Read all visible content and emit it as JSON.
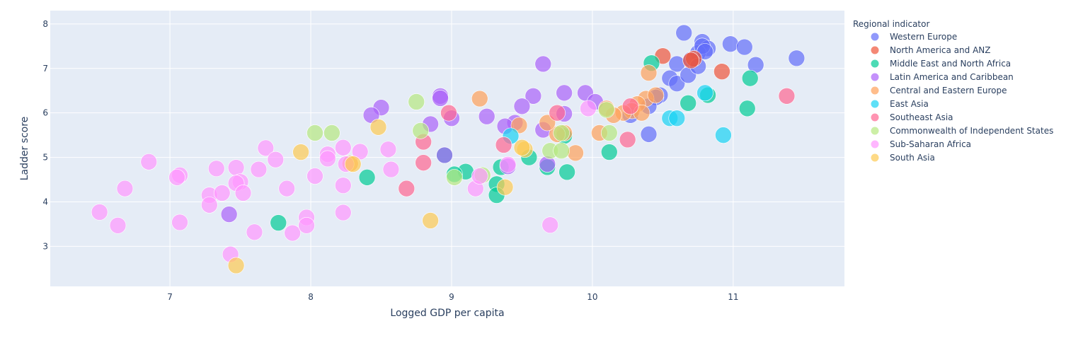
{
  "chart_data": {
    "type": "scatter",
    "xlabel": "Logged GDP per capita",
    "ylabel": "Ladder score",
    "xlim": [
      6.15,
      11.79
    ],
    "ylim": [
      2.1,
      8.3
    ],
    "xticks": [
      7,
      8,
      9,
      10,
      11
    ],
    "yticks": [
      3,
      4,
      5,
      6,
      7,
      8
    ],
    "grid": true,
    "legend": {
      "title": "Regional indicator",
      "position": "right"
    },
    "series": [
      {
        "name": "Western Europe",
        "color": "#636efa",
        "points": [
          [
            10.65,
            7.8
          ],
          [
            10.6,
            7.1
          ],
          [
            10.78,
            7.6
          ],
          [
            10.82,
            7.45
          ],
          [
            10.75,
            7.35
          ],
          [
            10.78,
            7.5
          ],
          [
            10.98,
            7.55
          ],
          [
            11.08,
            7.48
          ],
          [
            11.16,
            7.08
          ],
          [
            11.45,
            7.23
          ],
          [
            10.7,
            7.2
          ],
          [
            10.55,
            6.78
          ],
          [
            10.6,
            6.66
          ],
          [
            10.48,
            6.4
          ],
          [
            10.45,
            6.35
          ],
          [
            10.4,
            6.15
          ],
          [
            10.27,
            5.95
          ],
          [
            10.4,
            5.52
          ],
          [
            10.68,
            6.85
          ],
          [
            10.75,
            7.05
          ],
          [
            10.8,
            7.38
          ]
        ]
      },
      {
        "name": "North America and ANZ",
        "color": "#ef553b",
        "points": [
          [
            10.5,
            7.28
          ],
          [
            10.72,
            7.22
          ],
          [
            10.92,
            6.93
          ],
          [
            10.7,
            7.18
          ]
        ]
      },
      {
        "name": "Middle East and North Africa",
        "color": "#00cc96",
        "points": [
          [
            10.42,
            7.12
          ],
          [
            11.12,
            6.78
          ],
          [
            10.82,
            6.4
          ],
          [
            10.68,
            6.22
          ],
          [
            11.1,
            6.1
          ],
          [
            10.12,
            5.12
          ],
          [
            9.8,
            5.48
          ],
          [
            9.55,
            5.0
          ],
          [
            9.35,
            4.78
          ],
          [
            9.32,
            4.4
          ],
          [
            9.32,
            4.15
          ],
          [
            9.1,
            4.68
          ],
          [
            9.02,
            4.62
          ],
          [
            8.4,
            4.55
          ],
          [
            7.77,
            3.53
          ],
          [
            8.95,
            5.05
          ],
          [
            9.82,
            4.67
          ],
          [
            9.68,
            4.78
          ]
        ]
      },
      {
        "name": "Latin America and Caribbean",
        "color": "#ab63fa",
        "points": [
          [
            9.65,
            7.1
          ],
          [
            9.8,
            6.45
          ],
          [
            9.95,
            6.45
          ],
          [
            9.58,
            6.38
          ],
          [
            9.5,
            6.15
          ],
          [
            10.02,
            6.25
          ],
          [
            8.92,
            6.38
          ],
          [
            8.92,
            6.33
          ],
          [
            8.5,
            6.12
          ],
          [
            8.43,
            5.95
          ],
          [
            9.25,
            5.92
          ],
          [
            9.0,
            5.88
          ],
          [
            8.85,
            5.75
          ],
          [
            9.8,
            5.98
          ],
          [
            9.65,
            5.62
          ],
          [
            9.45,
            5.78
          ],
          [
            9.38,
            5.7
          ],
          [
            8.95,
            5.05
          ],
          [
            9.68,
            4.85
          ],
          [
            9.4,
            4.8
          ],
          [
            7.42,
            3.72
          ]
        ]
      },
      {
        "name": "Central and Eastern Europe",
        "color": "#ffa15a",
        "points": [
          [
            10.4,
            6.9
          ],
          [
            10.38,
            6.32
          ],
          [
            10.45,
            6.4
          ],
          [
            10.32,
            6.2
          ],
          [
            10.28,
            6.05
          ],
          [
            10.35,
            6.0
          ],
          [
            10.22,
            6.0
          ],
          [
            10.15,
            5.95
          ],
          [
            10.05,
            5.55
          ],
          [
            9.8,
            5.55
          ],
          [
            9.75,
            5.52
          ],
          [
            9.88,
            5.1
          ],
          [
            9.68,
            5.78
          ],
          [
            9.48,
            5.72
          ],
          [
            9.2,
            6.32
          ],
          [
            8.28,
            4.86
          ],
          [
            10.1,
            6.1
          ]
        ]
      },
      {
        "name": "East Asia",
        "color": "#19d3f3",
        "points": [
          [
            10.8,
            6.45
          ],
          [
            10.55,
            5.88
          ],
          [
            10.6,
            5.88
          ],
          [
            10.93,
            5.5
          ],
          [
            9.42,
            5.48
          ]
        ]
      },
      {
        "name": "Southeast Asia",
        "color": "#ff6692",
        "points": [
          [
            11.38,
            6.38
          ],
          [
            9.75,
            6.0
          ],
          [
            8.98,
            6.0
          ],
          [
            10.27,
            6.15
          ],
          [
            10.25,
            5.4
          ],
          [
            8.8,
            5.35
          ],
          [
            9.37,
            5.28
          ],
          [
            8.8,
            4.88
          ],
          [
            8.68,
            4.3
          ]
        ]
      },
      {
        "name": "Commonwealth of Independent States",
        "color": "#b6e880",
        "points": [
          [
            8.75,
            6.25
          ],
          [
            8.78,
            5.6
          ],
          [
            8.03,
            5.55
          ],
          [
            8.15,
            5.55
          ],
          [
            10.1,
            6.07
          ],
          [
            10.12,
            5.55
          ],
          [
            9.7,
            5.15
          ],
          [
            9.78,
            5.15
          ],
          [
            9.78,
            5.55
          ],
          [
            9.02,
            4.55
          ],
          [
            9.22,
            4.6
          ]
        ]
      },
      {
        "name": "Sub-Saharan Africa",
        "color": "#ff97ff",
        "points": [
          [
            6.85,
            4.9
          ],
          [
            6.68,
            4.3
          ],
          [
            6.5,
            3.77
          ],
          [
            6.63,
            3.47
          ],
          [
            7.07,
            4.6
          ],
          [
            7.05,
            4.55
          ],
          [
            7.07,
            3.54
          ],
          [
            7.28,
            4.15
          ],
          [
            7.28,
            3.93
          ],
          [
            7.33,
            4.75
          ],
          [
            7.37,
            4.2
          ],
          [
            7.47,
            4.77
          ],
          [
            7.5,
            4.45
          ],
          [
            7.47,
            4.42
          ],
          [
            7.52,
            4.2
          ],
          [
            7.43,
            2.82
          ],
          [
            7.6,
            3.32
          ],
          [
            7.63,
            4.73
          ],
          [
            7.68,
            5.21
          ],
          [
            7.75,
            4.95
          ],
          [
            7.83,
            4.3
          ],
          [
            7.87,
            3.3
          ],
          [
            7.97,
            3.65
          ],
          [
            7.97,
            3.47
          ],
          [
            8.03,
            4.58
          ],
          [
            8.12,
            5.07
          ],
          [
            8.12,
            4.97
          ],
          [
            8.23,
            5.22
          ],
          [
            8.23,
            4.37
          ],
          [
            8.23,
            3.76
          ],
          [
            8.25,
            4.85
          ],
          [
            8.35,
            5.13
          ],
          [
            8.55,
            5.18
          ],
          [
            8.57,
            4.73
          ],
          [
            9.17,
            4.3
          ],
          [
            9.2,
            4.58
          ],
          [
            9.4,
            4.84
          ],
          [
            9.97,
            6.1
          ],
          [
            9.7,
            3.48
          ]
        ]
      },
      {
        "name": "South Asia",
        "color": "#fecb52",
        "points": [
          [
            8.48,
            5.68
          ],
          [
            7.93,
            5.12
          ],
          [
            8.3,
            4.85
          ],
          [
            9.52,
            5.18
          ],
          [
            9.5,
            5.22
          ],
          [
            9.38,
            4.33
          ],
          [
            8.85,
            3.58
          ],
          [
            7.47,
            2.57
          ]
        ]
      }
    ]
  }
}
